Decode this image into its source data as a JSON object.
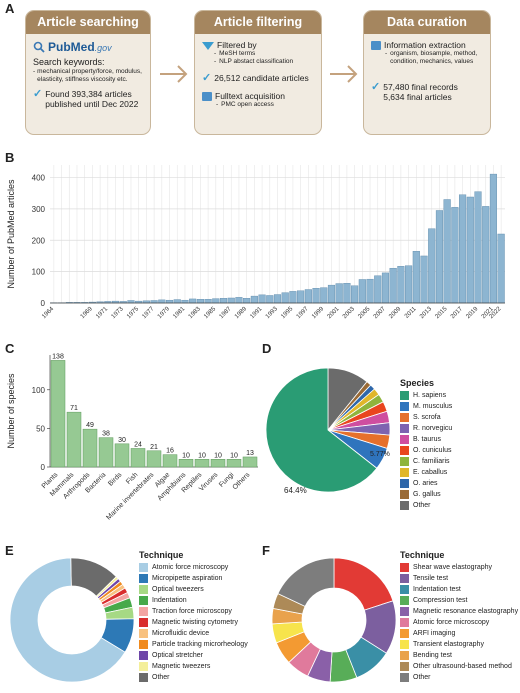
{
  "panels": {
    "A": "A",
    "B": "B",
    "C": "C",
    "D": "D",
    "E": "E",
    "F": "F"
  },
  "workflow": {
    "searching": {
      "title": "Article searching",
      "logo_main": "PubMed",
      "logo_suffix": ".gov",
      "keywords_heading": "Search keywords:",
      "keywords": "mechanical property/force, modulus, elasticity, stiffness viscosity etc.",
      "found_line1": "Found 393,384 articles",
      "found_line2": "published until Dec 2022"
    },
    "filtering": {
      "title": "Article filtering",
      "filtered_by": "Filtered by",
      "filters": [
        "MeSH terms",
        "NLP abstact classification"
      ],
      "candidates": "26,512 candidate articles",
      "fulltext": "Fulltext acquisition",
      "fulltext_sub": "PMC open access"
    },
    "curation": {
      "title": "Data curation",
      "extraction": "Information extraction",
      "extraction_sub": "organism, biosample, method, condition, mechanics, values",
      "records_line1": "57,480 final records",
      "records_line2": "5,634 final articles"
    },
    "colors": {
      "box_fill": "#f1ebe1",
      "box_border": "#c9b79c",
      "header": "#a5865f",
      "arrow": "#c4a27e",
      "check": "#3a9ccf"
    }
  },
  "chart_data": [
    {
      "id": "B",
      "type": "bar",
      "ylabel": "Number of PubMed articles",
      "yticks": [
        0,
        100,
        200,
        300,
        400
      ],
      "ylim": [
        0,
        440
      ],
      "color": "#8db5d1",
      "categories": [
        "1964",
        "1965",
        "1966",
        "1967",
        "1968",
        "1969",
        "1970",
        "1971",
        "1972",
        "1973",
        "1974",
        "1975",
        "1976",
        "1977",
        "1978",
        "1979",
        "1980",
        "1981",
        "1982",
        "1983",
        "1984",
        "1985",
        "1986",
        "1987",
        "1988",
        "1989",
        "1990",
        "1991",
        "1992",
        "1993",
        "1994",
        "1995",
        "1996",
        "1997",
        "1998",
        "1999",
        "2000",
        "2001",
        "2002",
        "2003",
        "2004",
        "2005",
        "2006",
        "2007",
        "2008",
        "2009",
        "2010",
        "2011",
        "2012",
        "2013",
        "2014",
        "2015",
        "2016",
        "2017",
        "2018",
        "2019",
        "2020",
        "2021",
        "2022"
      ],
      "xticks": [
        "1964",
        "1969",
        "1971",
        "1973",
        "1975",
        "1977",
        "1979",
        "1981",
        "1983",
        "1985",
        "1987",
        "1989",
        "1991",
        "1993",
        "1995",
        "1997",
        "1999",
        "2001",
        "2003",
        "2005",
        "2007",
        "2009",
        "2011",
        "2013",
        "2015",
        "2017",
        "2019",
        "2021",
        "2022"
      ],
      "values": [
        1,
        1,
        2,
        2,
        2,
        3,
        4,
        5,
        6,
        5,
        8,
        6,
        7,
        8,
        10,
        9,
        11,
        9,
        13,
        12,
        12,
        14,
        15,
        16,
        18,
        15,
        22,
        26,
        24,
        27,
        33,
        37,
        39,
        43,
        47,
        49,
        57,
        62,
        63,
        55,
        75,
        76,
        87,
        96,
        111,
        117,
        119,
        165,
        150,
        237,
        295,
        330,
        305,
        345,
        338,
        355,
        308,
        411,
        220
      ],
      "grid": true
    },
    {
      "id": "C",
      "type": "bar",
      "ylabel": "Number of species",
      "yticks": [
        0,
        50,
        100
      ],
      "ylim": [
        0,
        145
      ],
      "color": "#96c993",
      "categories": [
        "Plants",
        "Mammals",
        "Arthropods",
        "Bacteria",
        "Birds",
        "Fish",
        "Marine invertebrates",
        "Algae",
        "Amphibians",
        "Reptiles",
        "Viruses",
        "Fungi",
        "Others"
      ],
      "values": [
        138,
        71,
        49,
        38,
        30,
        24,
        21,
        16,
        10,
        10,
        10,
        10,
        13
      ],
      "grid": false
    },
    {
      "id": "D",
      "type": "pie",
      "legend_title": "Species",
      "series": [
        {
          "name": "H. sapiens",
          "value": 64.4,
          "color": "#2a9c74"
        },
        {
          "name": "M. musculus",
          "value": 5.77,
          "color": "#2f74bd"
        },
        {
          "name": "S. scrofa",
          "value": 3.5,
          "color": "#e6702c"
        },
        {
          "name": "R. norvegicu",
          "value": 3.2,
          "color": "#7e63b0"
        },
        {
          "name": "B. taurus",
          "value": 3.0,
          "color": "#cf4ea0"
        },
        {
          "name": "O. cuniculus",
          "value": 2.6,
          "color": "#e9451e"
        },
        {
          "name": "C. familiaris",
          "value": 2.2,
          "color": "#8fb43c"
        },
        {
          "name": "E. caballus",
          "value": 1.8,
          "color": "#e0b62a"
        },
        {
          "name": "O. aries",
          "value": 1.4,
          "color": "#2e67aa"
        },
        {
          "name": "G. gallus",
          "value": 1.3,
          "color": "#9a6a35"
        },
        {
          "name": "Other",
          "value": 10.8,
          "color": "#6b6b6b"
        }
      ],
      "labels": [
        {
          "text": "64.4%",
          "series": "H. sapiens"
        },
        {
          "text": "5.77%",
          "series": "M. musculus"
        }
      ]
    },
    {
      "id": "E",
      "type": "pie",
      "legend_title": "Technique",
      "series": [
        {
          "name": "Atomic force microscopy",
          "value": 66,
          "color": "#a8cde4"
        },
        {
          "name": "Micropipette aspiration",
          "value": 9,
          "color": "#2d79b6"
        },
        {
          "name": "Optical tweezers",
          "value": 3,
          "color": "#a6d984"
        },
        {
          "name": "Indentation",
          "value": 2.5,
          "color": "#46a94a"
        },
        {
          "name": "Traction force microscopy",
          "value": 1.5,
          "color": "#f3a5a3"
        },
        {
          "name": "Magnetic twisting cytometry",
          "value": 1.3,
          "color": "#d92d2d"
        },
        {
          "name": "Microfluidic device",
          "value": 1.1,
          "color": "#f8c17f"
        },
        {
          "name": "Particle tracking microrheology",
          "value": 1.0,
          "color": "#f08a1e"
        },
        {
          "name": "Optical stretcher",
          "value": 0.9,
          "color": "#6e46a8"
        },
        {
          "name": "Magnetic tweezers",
          "value": 0.7,
          "color": "#f4ef9a"
        },
        {
          "name": "Other",
          "value": 13,
          "color": "#6b6b6b"
        }
      ]
    },
    {
      "id": "F",
      "type": "pie",
      "legend_title": "Technique",
      "series": [
        {
          "name": "Shear wave elastography",
          "value": 20,
          "color": "#e23a35"
        },
        {
          "name": "Tensile test",
          "value": 14,
          "color": "#7c5f9f"
        },
        {
          "name": "Indentation test",
          "value": 10,
          "color": "#3a8fa6"
        },
        {
          "name": "Compression test",
          "value": 7,
          "color": "#58ad58"
        },
        {
          "name": "Magnetic resonance elastography",
          "value": 6,
          "color": "#8a60a8"
        },
        {
          "name": "Atomic force microscopy",
          "value": 6,
          "color": "#e07a9c"
        },
        {
          "name": "ARFI imaging",
          "value": 6,
          "color": "#f39a32"
        },
        {
          "name": "Transient elastography",
          "value": 5,
          "color": "#f7e44c"
        },
        {
          "name": "Bending test",
          "value": 4,
          "color": "#e9a24c"
        },
        {
          "name": "Other ultrasound-based method",
          "value": 4,
          "color": "#ad8a58"
        },
        {
          "name": "Other",
          "value": 18,
          "color": "#7d7d7d"
        }
      ]
    }
  ]
}
